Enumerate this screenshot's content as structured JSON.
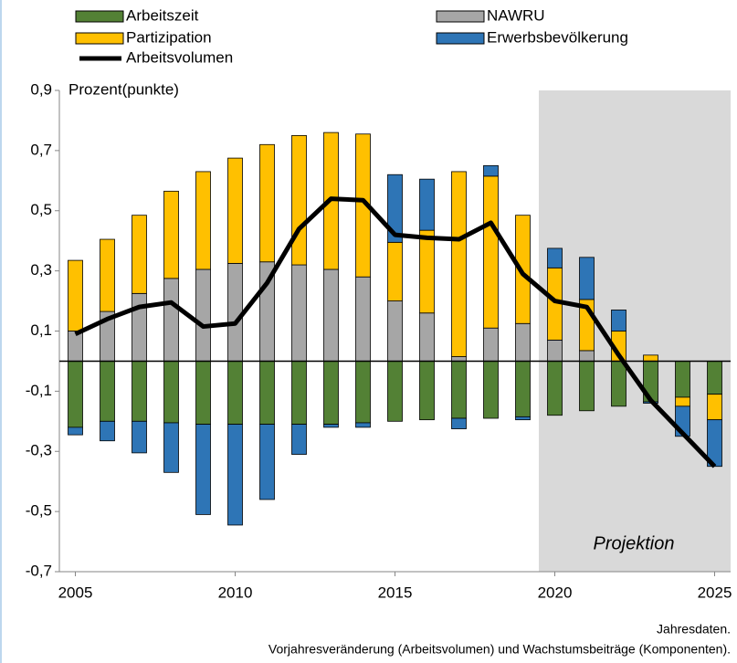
{
  "chart_data": {
    "type": "bar",
    "y_label": "Prozent(punkte)",
    "annotation": "Projektion",
    "notes": [
      "Jahresdaten.",
      "Vorjahresveränderung (Arbeitsvolumen) und Wachstumsbeiträge (Komponenten)."
    ],
    "x": [
      2005,
      2006,
      2007,
      2008,
      2009,
      2010,
      2011,
      2012,
      2013,
      2014,
      2015,
      2016,
      2017,
      2018,
      2019,
      2020,
      2021,
      2022,
      2023,
      2024,
      2025
    ],
    "xlim": [
      2004.5,
      2025.5
    ],
    "xticks": [
      2005,
      2010,
      2015,
      2020,
      2025
    ],
    "ylim": [
      -0.7,
      0.9
    ],
    "yticks": [
      {
        "value": -0.7,
        "label": "-0,7"
      },
      {
        "value": -0.5,
        "label": "-0,5"
      },
      {
        "value": -0.3,
        "label": "-0,3"
      },
      {
        "value": -0.1,
        "label": "-0,1"
      },
      {
        "value": 0.1,
        "label": "0,1"
      },
      {
        "value": 0.3,
        "label": "0,3"
      },
      {
        "value": 0.5,
        "label": "0,5"
      },
      {
        "value": 0.7,
        "label": "0,7"
      },
      {
        "value": 0.9,
        "label": "0,9"
      }
    ],
    "series": [
      {
        "name": "Arbeitszeit",
        "color": "#538135",
        "type": "bar",
        "values": [
          -0.22,
          -0.2,
          -0.2,
          -0.205,
          -0.21,
          -0.21,
          -0.21,
          -0.21,
          -0.21,
          -0.205,
          -0.2,
          -0.195,
          -0.19,
          -0.19,
          -0.185,
          -0.18,
          -0.165,
          -0.15,
          -0.135,
          -0.12,
          -0.11
        ]
      },
      {
        "name": "NAWRU",
        "color": "#a6a6a6",
        "type": "bar",
        "values": [
          0.1,
          0.165,
          0.225,
          0.275,
          0.305,
          0.325,
          0.33,
          0.32,
          0.305,
          0.28,
          0.2,
          0.16,
          0.015,
          0.11,
          0.125,
          0.07,
          0.035,
          0,
          0,
          0,
          0
        ]
      },
      {
        "name": "Partizipation",
        "color": "#ffc000",
        "type": "bar",
        "values": [
          0.235,
          0.24,
          0.26,
          0.29,
          0.325,
          0.35,
          0.39,
          0.43,
          0.455,
          0.475,
          0.195,
          0.275,
          0.615,
          0.505,
          0.36,
          0.24,
          0.17,
          0.1,
          0.02,
          -0.03,
          -0.085
        ]
      },
      {
        "name": "Erwerbsbevölkerung",
        "color": "#2e75b6",
        "type": "bar",
        "values": [
          -0.025,
          -0.065,
          -0.105,
          -0.165,
          -0.3,
          -0.335,
          -0.25,
          -0.1,
          -0.01,
          -0.015,
          0.225,
          0.17,
          -0.035,
          0.035,
          -0.01,
          0.065,
          0.14,
          0.07,
          -0.005,
          -0.1,
          -0.155
        ]
      },
      {
        "name": "Arbeitsvolumen",
        "color": "#000000",
        "type": "line",
        "values": [
          0.09,
          0.14,
          0.18,
          0.195,
          0.115,
          0.125,
          0.26,
          0.44,
          0.54,
          0.535,
          0.42,
          0.41,
          0.405,
          0.46,
          0.29,
          0.2,
          0.18,
          0.02,
          -0.13,
          -0.24,
          -0.35
        ]
      }
    ]
  }
}
